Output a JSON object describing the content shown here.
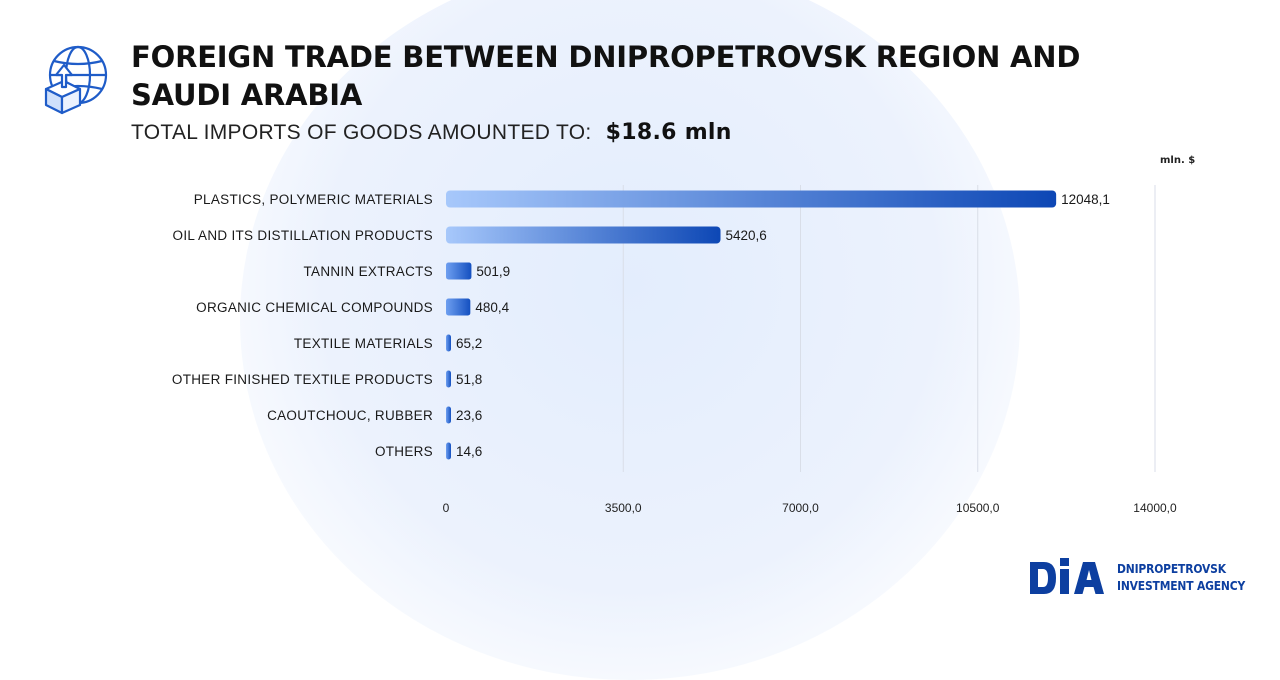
{
  "page": {
    "title": "FOREIGN TRADE BETWEEN DNIPROPETROVSK REGION AND SAUDI ARABIA",
    "subtitle_label": "TOTAL IMPORTS OF GOODS AMOUNTED TO:",
    "subtitle_value": "$18.6  mln",
    "unit_label": "mln. $",
    "icon": "globe-with-upload-box-icon",
    "accent_color": "#0d47b5",
    "bar_gradient": [
      "#a7c8fb",
      "#0d47b5"
    ]
  },
  "logo": {
    "mark": "DIA",
    "line1": "DNIPROPETROVSK",
    "line2": "INVESTMENT AGENCY",
    "color": "#0d3fa0"
  },
  "chart_data": {
    "type": "bar",
    "orientation": "horizontal",
    "categories": [
      "PLASTICS, POLYMERIC MATERIALS",
      "OIL AND ITS DISTILLATION PRODUCTS",
      "TANNIN EXTRACTS",
      "ORGANIC CHEMICAL COMPOUNDS",
      "TEXTILE MATERIALS",
      "OTHER FINISHED TEXTILE PRODUCTS",
      "CAOUTCHOUC, RUBBER",
      "OTHERS"
    ],
    "values": [
      12048.1,
      5420.6,
      501.9,
      480.4,
      65.2,
      51.8,
      23.6,
      14.6
    ],
    "value_labels": [
      "12048,1",
      "5420,6",
      "501,9",
      "480,4",
      "65,2",
      "51,8",
      "23,6",
      "14,6"
    ],
    "xticks": [
      0,
      3500,
      7000,
      10500,
      14000
    ],
    "xtick_labels": [
      "0",
      "3500,0",
      "7000,0",
      "10500,0",
      "14000,0"
    ],
    "xlim": [
      0,
      14000
    ],
    "grid": true,
    "legend": "none"
  }
}
